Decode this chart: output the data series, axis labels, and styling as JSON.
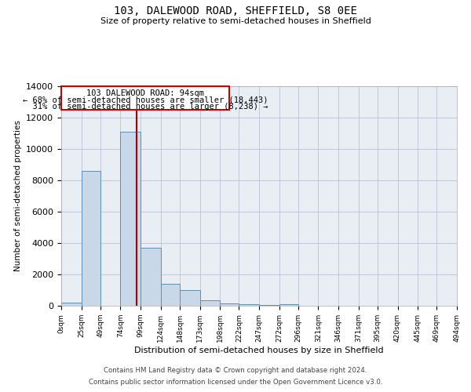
{
  "title1": "103, DALEWOOD ROAD, SHEFFIELD, S8 0EE",
  "title2": "Size of property relative to semi-detached houses in Sheffield",
  "xlabel": "Distribution of semi-detached houses by size in Sheffield",
  "ylabel": "Number of semi-detached properties",
  "property_size": 94,
  "property_label": "103 DALEWOOD ROAD: 94sqm",
  "pct_smaller": 68,
  "pct_larger": 31,
  "count_smaller": "18,443",
  "count_larger": "8,238",
  "bin_edges": [
    0,
    25,
    49,
    74,
    99,
    124,
    148,
    173,
    198,
    222,
    247,
    272,
    296,
    321,
    346,
    371,
    395,
    420,
    445,
    469,
    494
  ],
  "bar_heights": [
    200,
    8600,
    0,
    11100,
    3700,
    1400,
    1000,
    350,
    150,
    100,
    70,
    100,
    0,
    0,
    0,
    0,
    0,
    0,
    0,
    0
  ],
  "bar_color": "#c8d8e8",
  "bar_edge_color": "#6090b0",
  "line_color": "#aa0000",
  "annotation_box_color": "#cc0000",
  "grid_color": "#c0c8d8",
  "background_color": "#e8eef4",
  "ylim": [
    0,
    14000
  ],
  "yticks": [
    0,
    2000,
    4000,
    6000,
    8000,
    10000,
    12000,
    14000
  ],
  "tick_labels": [
    "0sqm",
    "25sqm",
    "49sqm",
    "74sqm",
    "99sqm",
    "124sqm",
    "148sqm",
    "173sqm",
    "198sqm",
    "222sqm",
    "247sqm",
    "272sqm",
    "296sqm",
    "321sqm",
    "346sqm",
    "371sqm",
    "395sqm",
    "420sqm",
    "445sqm",
    "469sqm",
    "494sqm"
  ],
  "footer1": "Contains HM Land Registry data © Crown copyright and database right 2024.",
  "footer2": "Contains public sector information licensed under the Open Government Licence v3.0."
}
